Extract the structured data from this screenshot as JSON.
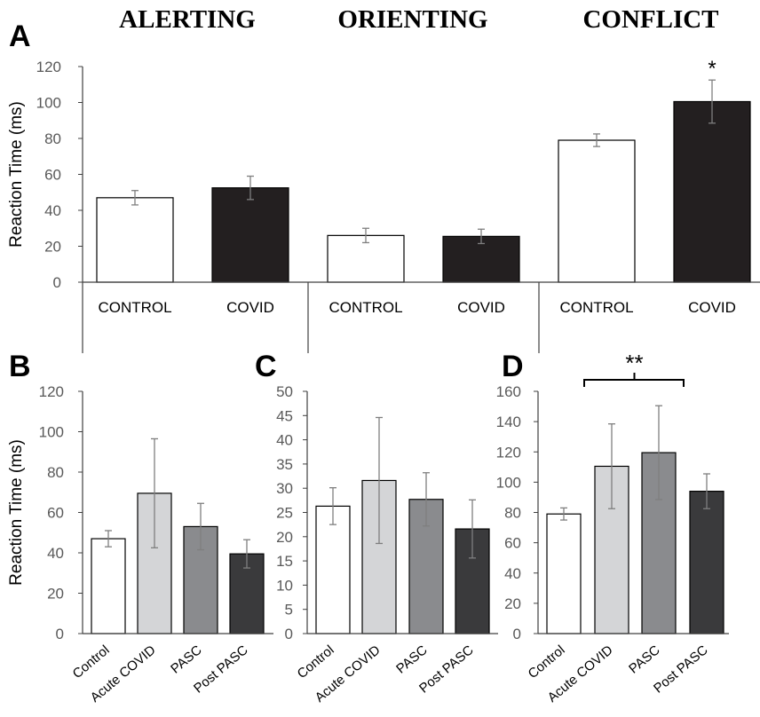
{
  "chart_data": [
    {
      "panel": "A",
      "type": "bar",
      "section_titles": [
        "ALERTING",
        "ORIENTING",
        "CONFLICT"
      ],
      "ylabel": "Reaction Time (ms)",
      "ylim": [
        0,
        120
      ],
      "yticks": [
        "0",
        "20",
        "40",
        "60",
        "80",
        "100",
        "120"
      ],
      "categories": [
        "CONTROL",
        "COVID",
        "CONTROL",
        "COVID",
        "CONTROL",
        "COVID"
      ],
      "values": [
        47,
        52.5,
        26,
        25.5,
        79,
        100.5
      ],
      "errors": [
        4,
        6.5,
        4,
        4,
        3.5,
        12
      ],
      "fills": [
        "#ffffff",
        "#231f20",
        "#ffffff",
        "#231f20",
        "#ffffff",
        "#231f20"
      ],
      "annotation": "*",
      "grid": false
    },
    {
      "panel": "B",
      "type": "bar",
      "ylabel": "Reaction Time (ms)",
      "ylim": [
        0,
        120
      ],
      "yticks": [
        "0",
        "20",
        "40",
        "60",
        "80",
        "100",
        "120"
      ],
      "categories": [
        "Control",
        "Acute COVID",
        "PASC",
        "Post PASC"
      ],
      "values": [
        47,
        69.5,
        53,
        39.5
      ],
      "errors": [
        4,
        27,
        11.5,
        7
      ],
      "fills": [
        "#ffffff",
        "#d4d5d7",
        "#8a8b8e",
        "#3a3a3c"
      ],
      "grid": false
    },
    {
      "panel": "C",
      "type": "bar",
      "ylabel": "",
      "ylim": [
        0,
        50
      ],
      "yticks": [
        "0",
        "5",
        "10",
        "15",
        "20",
        "25",
        "30",
        "35",
        "40",
        "45",
        "50"
      ],
      "categories": [
        "Control",
        "Acute COVID",
        "PASC",
        "Post PASC"
      ],
      "values": [
        26.3,
        31.6,
        27.7,
        21.6
      ],
      "errors": [
        3.8,
        13,
        5.5,
        6
      ],
      "fills": [
        "#ffffff",
        "#d4d5d7",
        "#8a8b8e",
        "#3a3a3c"
      ],
      "grid": false
    },
    {
      "panel": "D",
      "type": "bar",
      "ylabel": "",
      "ylim": [
        0,
        160
      ],
      "yticks": [
        "0",
        "20",
        "40",
        "60",
        "80",
        "100",
        "120",
        "140",
        "160"
      ],
      "categories": [
        "Control",
        "Acute COVID",
        "PASC",
        "Post PASC"
      ],
      "values": [
        79,
        110.5,
        119.5,
        94
      ],
      "errors": [
        4,
        28,
        31,
        11.5
      ],
      "fills": [
        "#ffffff",
        "#d4d5d7",
        "#8a8b8e",
        "#3a3a3c"
      ],
      "annotation": "**",
      "grid": false
    }
  ]
}
